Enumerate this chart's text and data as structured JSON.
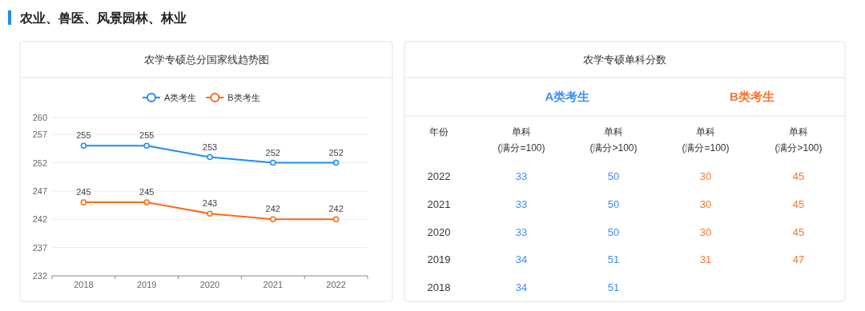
{
  "chart_data": [
    {
      "type": "line",
      "title": "农学专硕总分国家线趋势图",
      "annotations": [
        "农业、兽医、风景园林、林业"
      ],
      "categories": [
        "2018",
        "2019",
        "2020",
        "2021",
        "2022"
      ],
      "series": [
        {
          "name": "A类考生",
          "color": "#1e8cf5",
          "values": [
            255,
            255,
            253,
            252,
            252
          ]
        },
        {
          "name": "B类考生",
          "color": "#fa6b14",
          "values": [
            245,
            245,
            243,
            242,
            242
          ]
        }
      ],
      "ylim": [
        232,
        260
      ],
      "yticks": [
        232,
        237,
        242,
        247,
        252,
        257,
        260
      ],
      "grid": "y",
      "legend": "top",
      "marker": "circle",
      "data_labels": true
    },
    {
      "type": "heatmap",
      "title": "农学专硕单科分数",
      "ylabel": "年份",
      "annotations": [
        "A类考生",
        "B类考生"
      ],
      "categories": [
        "单科 (满分=100)",
        "单科 (满分>100)",
        "单科 (满分=100)",
        "单科 (满分>100)"
      ],
      "colors": [
        "#3f8ff0",
        "#3f8ff0",
        "#f7742d",
        "#f7742d"
      ],
      "y_categories": [
        "2022",
        "2021",
        "2020",
        "2019",
        "2018"
      ],
      "cells": [
        [
          33,
          50,
          30,
          45
        ],
        [
          33,
          50,
          30,
          45
        ],
        [
          33,
          50,
          30,
          45
        ],
        [
          34,
          51,
          31,
          47
        ],
        [
          34,
          51,
          null,
          null
        ]
      ],
      "data_labels": true
    }
  ]
}
